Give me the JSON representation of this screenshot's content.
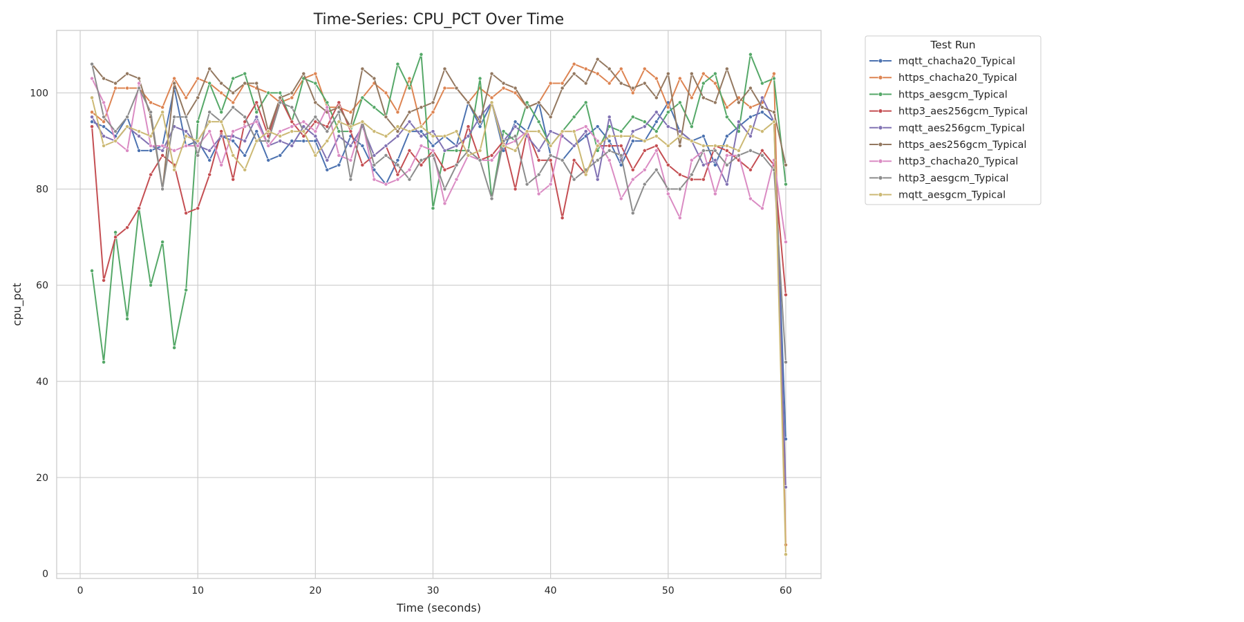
{
  "chart_data": {
    "type": "line",
    "title": "Time-Series: CPU_PCT Over Time",
    "xlabel": "Time (seconds)",
    "ylabel": "cpu_pct",
    "xlim": [
      -2,
      63
    ],
    "ylim": [
      -1,
      113
    ],
    "xticks": [
      0,
      10,
      20,
      30,
      40,
      50,
      60
    ],
    "yticks": [
      0,
      20,
      40,
      60,
      80,
      100
    ],
    "grid": true,
    "legend_title": "Test Run",
    "legend_position": "outside-top-right",
    "x": [
      1,
      2,
      3,
      4,
      5,
      6,
      7,
      8,
      9,
      10,
      11,
      12,
      13,
      14,
      15,
      16,
      17,
      18,
      19,
      20,
      21,
      22,
      23,
      24,
      25,
      26,
      27,
      28,
      29,
      30,
      31,
      32,
      33,
      34,
      35,
      36,
      37,
      38,
      39,
      40,
      41,
      42,
      43,
      44,
      45,
      46,
      47,
      48,
      49,
      50,
      51,
      52,
      53,
      54,
      55,
      56,
      57,
      58,
      59,
      60
    ],
    "series": [
      {
        "name": "mqtt_chacha20_Typical",
        "color": "#4c72b0",
        "values": [
          94,
          93,
          91,
          95,
          88,
          88,
          89,
          101,
          89,
          90,
          86,
          91,
          90,
          87,
          92,
          86,
          87,
          90,
          90,
          90,
          84,
          85,
          91,
          89,
          84,
          81,
          86,
          92,
          92,
          89,
          91,
          89,
          98,
          93,
          98,
          88,
          94,
          92,
          98,
          87,
          86,
          89,
          91,
          93,
          90,
          85,
          90,
          90,
          94,
          98,
          92,
          90,
          91,
          85,
          91,
          93,
          95,
          96,
          94,
          28
        ]
      },
      {
        "name": "https_chacha20_Typical",
        "color": "#dd8452",
        "values": [
          96,
          94,
          101,
          101,
          101,
          98,
          97,
          103,
          99,
          103,
          102,
          100,
          98,
          102,
          101,
          100,
          98,
          99,
          103,
          104,
          97,
          97,
          96,
          99,
          102,
          100,
          96,
          103,
          93,
          96,
          101,
          101,
          98,
          101,
          99,
          101,
          100,
          97,
          98,
          102,
          102,
          106,
          105,
          104,
          102,
          105,
          100,
          105,
          103,
          97,
          103,
          99,
          104,
          102,
          97,
          99,
          97,
          98,
          104,
          6
        ]
      },
      {
        "name": "https_aesgcm_Typical",
        "color": "#55a868",
        "values": [
          63,
          44,
          71,
          53,
          76,
          60,
          69,
          47,
          59,
          94,
          102,
          96,
          103,
          104,
          96,
          100,
          100,
          94,
          103,
          102,
          98,
          92,
          92,
          99,
          97,
          95,
          106,
          101,
          108,
          76,
          88,
          88,
          88,
          103,
          78,
          92,
          90,
          98,
          94,
          89,
          92,
          95,
          98,
          88,
          93,
          92,
          95,
          94,
          92,
          96,
          98,
          93,
          102,
          104,
          95,
          92,
          108,
          102,
          103,
          81
        ]
      },
      {
        "name": "http3_aes256gcm_Typical",
        "color": "#c44e52",
        "values": [
          93,
          61,
          70,
          72,
          76,
          83,
          87,
          85,
          75,
          76,
          83,
          92,
          82,
          94,
          98,
          91,
          99,
          94,
          91,
          94,
          93,
          98,
          92,
          85,
          87,
          89,
          83,
          88,
          85,
          88,
          84,
          85,
          93,
          86,
          87,
          90,
          80,
          92,
          86,
          86,
          74,
          86,
          83,
          89,
          89,
          89,
          84,
          88,
          89,
          85,
          83,
          82,
          82,
          89,
          88,
          86,
          84,
          88,
          85,
          58
        ]
      },
      {
        "name": "mqtt_aes256gcm_Typical",
        "color": "#8172b3",
        "values": [
          95,
          91,
          90,
          93,
          91,
          89,
          88,
          93,
          92,
          89,
          88,
          91,
          91,
          90,
          95,
          89,
          90,
          89,
          93,
          91,
          86,
          91,
          89,
          93,
          87,
          89,
          91,
          94,
          91,
          92,
          88,
          89,
          91,
          95,
          98,
          90,
          93,
          91,
          88,
          92,
          91,
          89,
          92,
          82,
          95,
          86,
          92,
          93,
          96,
          93,
          92,
          90,
          85,
          86,
          81,
          94,
          91,
          99,
          94,
          18
        ]
      },
      {
        "name": "https_aes256gcm_Typical",
        "color": "#937860",
        "values": [
          106,
          103,
          102,
          104,
          103,
          95,
          80,
          102,
          95,
          99,
          105,
          102,
          100,
          102,
          102,
          92,
          99,
          100,
          104,
          98,
          96,
          97,
          93,
          105,
          103,
          95,
          92,
          96,
          97,
          98,
          105,
          101,
          98,
          94,
          104,
          102,
          101,
          97,
          98,
          95,
          101,
          104,
          102,
          107,
          105,
          102,
          101,
          102,
          99,
          104,
          89,
          104,
          99,
          98,
          105,
          98,
          101,
          97,
          96,
          85
        ]
      },
      {
        "name": "http3_chacha20_Typical",
        "color": "#da8bc3",
        "values": [
          103,
          98,
          90,
          88,
          102,
          89,
          89,
          88,
          89,
          89,
          92,
          85,
          92,
          93,
          94,
          89,
          92,
          93,
          94,
          92,
          97,
          87,
          86,
          94,
          82,
          81,
          82,
          84,
          89,
          88,
          77,
          82,
          87,
          86,
          86,
          89,
          90,
          92,
          79,
          81,
          92,
          92,
          93,
          90,
          86,
          78,
          82,
          84,
          88,
          79,
          74,
          86,
          88,
          79,
          87,
          87,
          78,
          76,
          86,
          69
        ]
      },
      {
        "name": "http3_aesgcm_Typical",
        "color": "#8c8c8c",
        "values": [
          106,
          95,
          92,
          95,
          101,
          96,
          80,
          95,
          95,
          87,
          96,
          94,
          97,
          95,
          90,
          90,
          98,
          97,
          92,
          95,
          92,
          96,
          82,
          94,
          85,
          87,
          85,
          82,
          86,
          87,
          80,
          85,
          88,
          86,
          78,
          90,
          91,
          81,
          83,
          87,
          86,
          82,
          84,
          86,
          88,
          87,
          75,
          81,
          84,
          80,
          80,
          83,
          88,
          88,
          85,
          87,
          88,
          87,
          84,
          44
        ]
      },
      {
        "name": "mqtt_aesgcm_Typical",
        "color": "#ccb974",
        "values": [
          99,
          89,
          90,
          93,
          92,
          91,
          96,
          84,
          91,
          90,
          94,
          94,
          87,
          84,
          90,
          92,
          91,
          92,
          92,
          87,
          90,
          94,
          93,
          94,
          92,
          91,
          93,
          92,
          93,
          91,
          91,
          92,
          87,
          88,
          98,
          89,
          88,
          92,
          92,
          89,
          92,
          92,
          83,
          89,
          91,
          91,
          91,
          90,
          91,
          89,
          91,
          90,
          89,
          89,
          89,
          88,
          93,
          92,
          94,
          4
        ]
      }
    ]
  }
}
